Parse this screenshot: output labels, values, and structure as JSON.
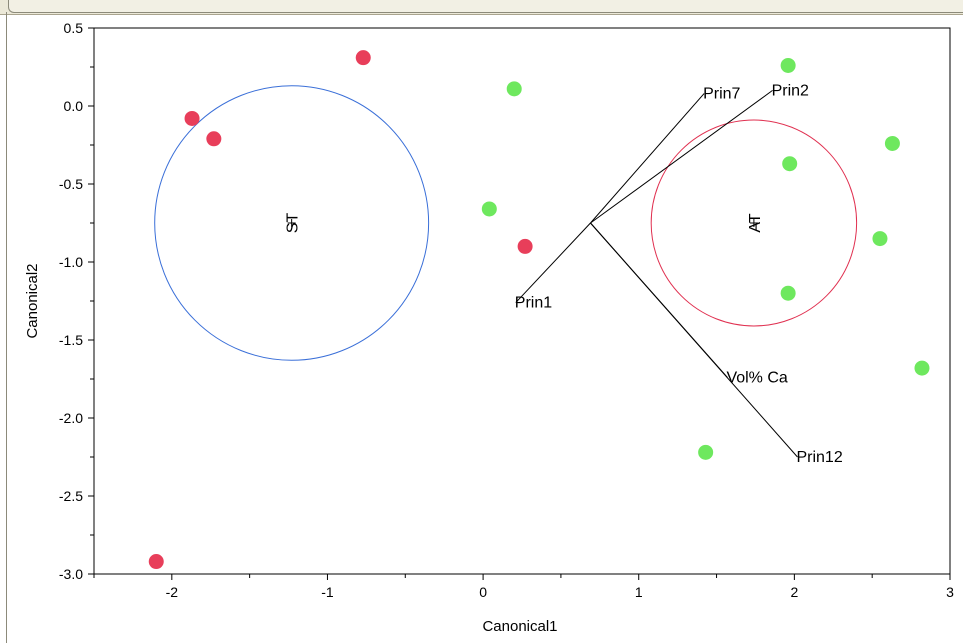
{
  "chart_data": {
    "type": "scatter",
    "xlabel": "Canonical1",
    "ylabel": "Canonical2",
    "xlim": [
      -2.5,
      3
    ],
    "ylim": [
      -3,
      0.5
    ],
    "xticks": [
      -2,
      -1,
      0,
      1,
      2,
      3
    ],
    "yticks": [
      0.5,
      0.0,
      -0.5,
      -1.0,
      -1.5,
      -2.0,
      -2.5,
      -3.0
    ],
    "xtick_labels": [
      "-2",
      "-1",
      "0",
      "1",
      "2",
      "3"
    ],
    "ytick_labels": [
      "0.5",
      "0.0",
      "-0.5",
      "-1.0",
      "-1.5",
      "-2.0",
      "-2.5",
      "-3.0"
    ],
    "series": [
      {
        "name": "ST",
        "color": "#e83e5a",
        "points": [
          {
            "x": -1.87,
            "y": -0.08
          },
          {
            "x": -1.73,
            "y": -0.21
          },
          {
            "x": -0.77,
            "y": 0.31
          },
          {
            "x": 0.27,
            "y": -0.9
          },
          {
            "x": -2.1,
            "y": -2.92
          }
        ]
      },
      {
        "name": "AT",
        "color": "#6ee85e",
        "points": [
          {
            "x": 0.2,
            "y": 0.11
          },
          {
            "x": 0.04,
            "y": -0.66
          },
          {
            "x": 1.96,
            "y": 0.26
          },
          {
            "x": 1.97,
            "y": -0.37
          },
          {
            "x": 1.96,
            "y": -1.2
          },
          {
            "x": 2.63,
            "y": -0.24
          },
          {
            "x": 2.55,
            "y": -0.85
          },
          {
            "x": 2.82,
            "y": -1.68
          },
          {
            "x": 1.43,
            "y": -2.22
          }
        ]
      }
    ],
    "circles": [
      {
        "label": "ST",
        "cx": -1.23,
        "cy": -0.75,
        "r": 0.88,
        "color": "#3a6fd8"
      },
      {
        "label": "AT",
        "cx": 1.74,
        "cy": -0.75,
        "r": 0.66,
        "color": "#e03050"
      }
    ],
    "biplot_origin": {
      "x": 0.69,
      "y": -0.75
    },
    "biplot_rays": [
      {
        "label": "Prin7",
        "x": 1.42,
        "y": 0.08
      },
      {
        "label": "Prin2",
        "x": 1.86,
        "y": 0.1
      },
      {
        "label": "Prin1",
        "x": 0.21,
        "y": -1.26
      },
      {
        "label": "Vol% Ca",
        "x": 1.57,
        "y": -1.74
      },
      {
        "label": "Prin12",
        "x": 2.02,
        "y": -2.25
      }
    ]
  }
}
